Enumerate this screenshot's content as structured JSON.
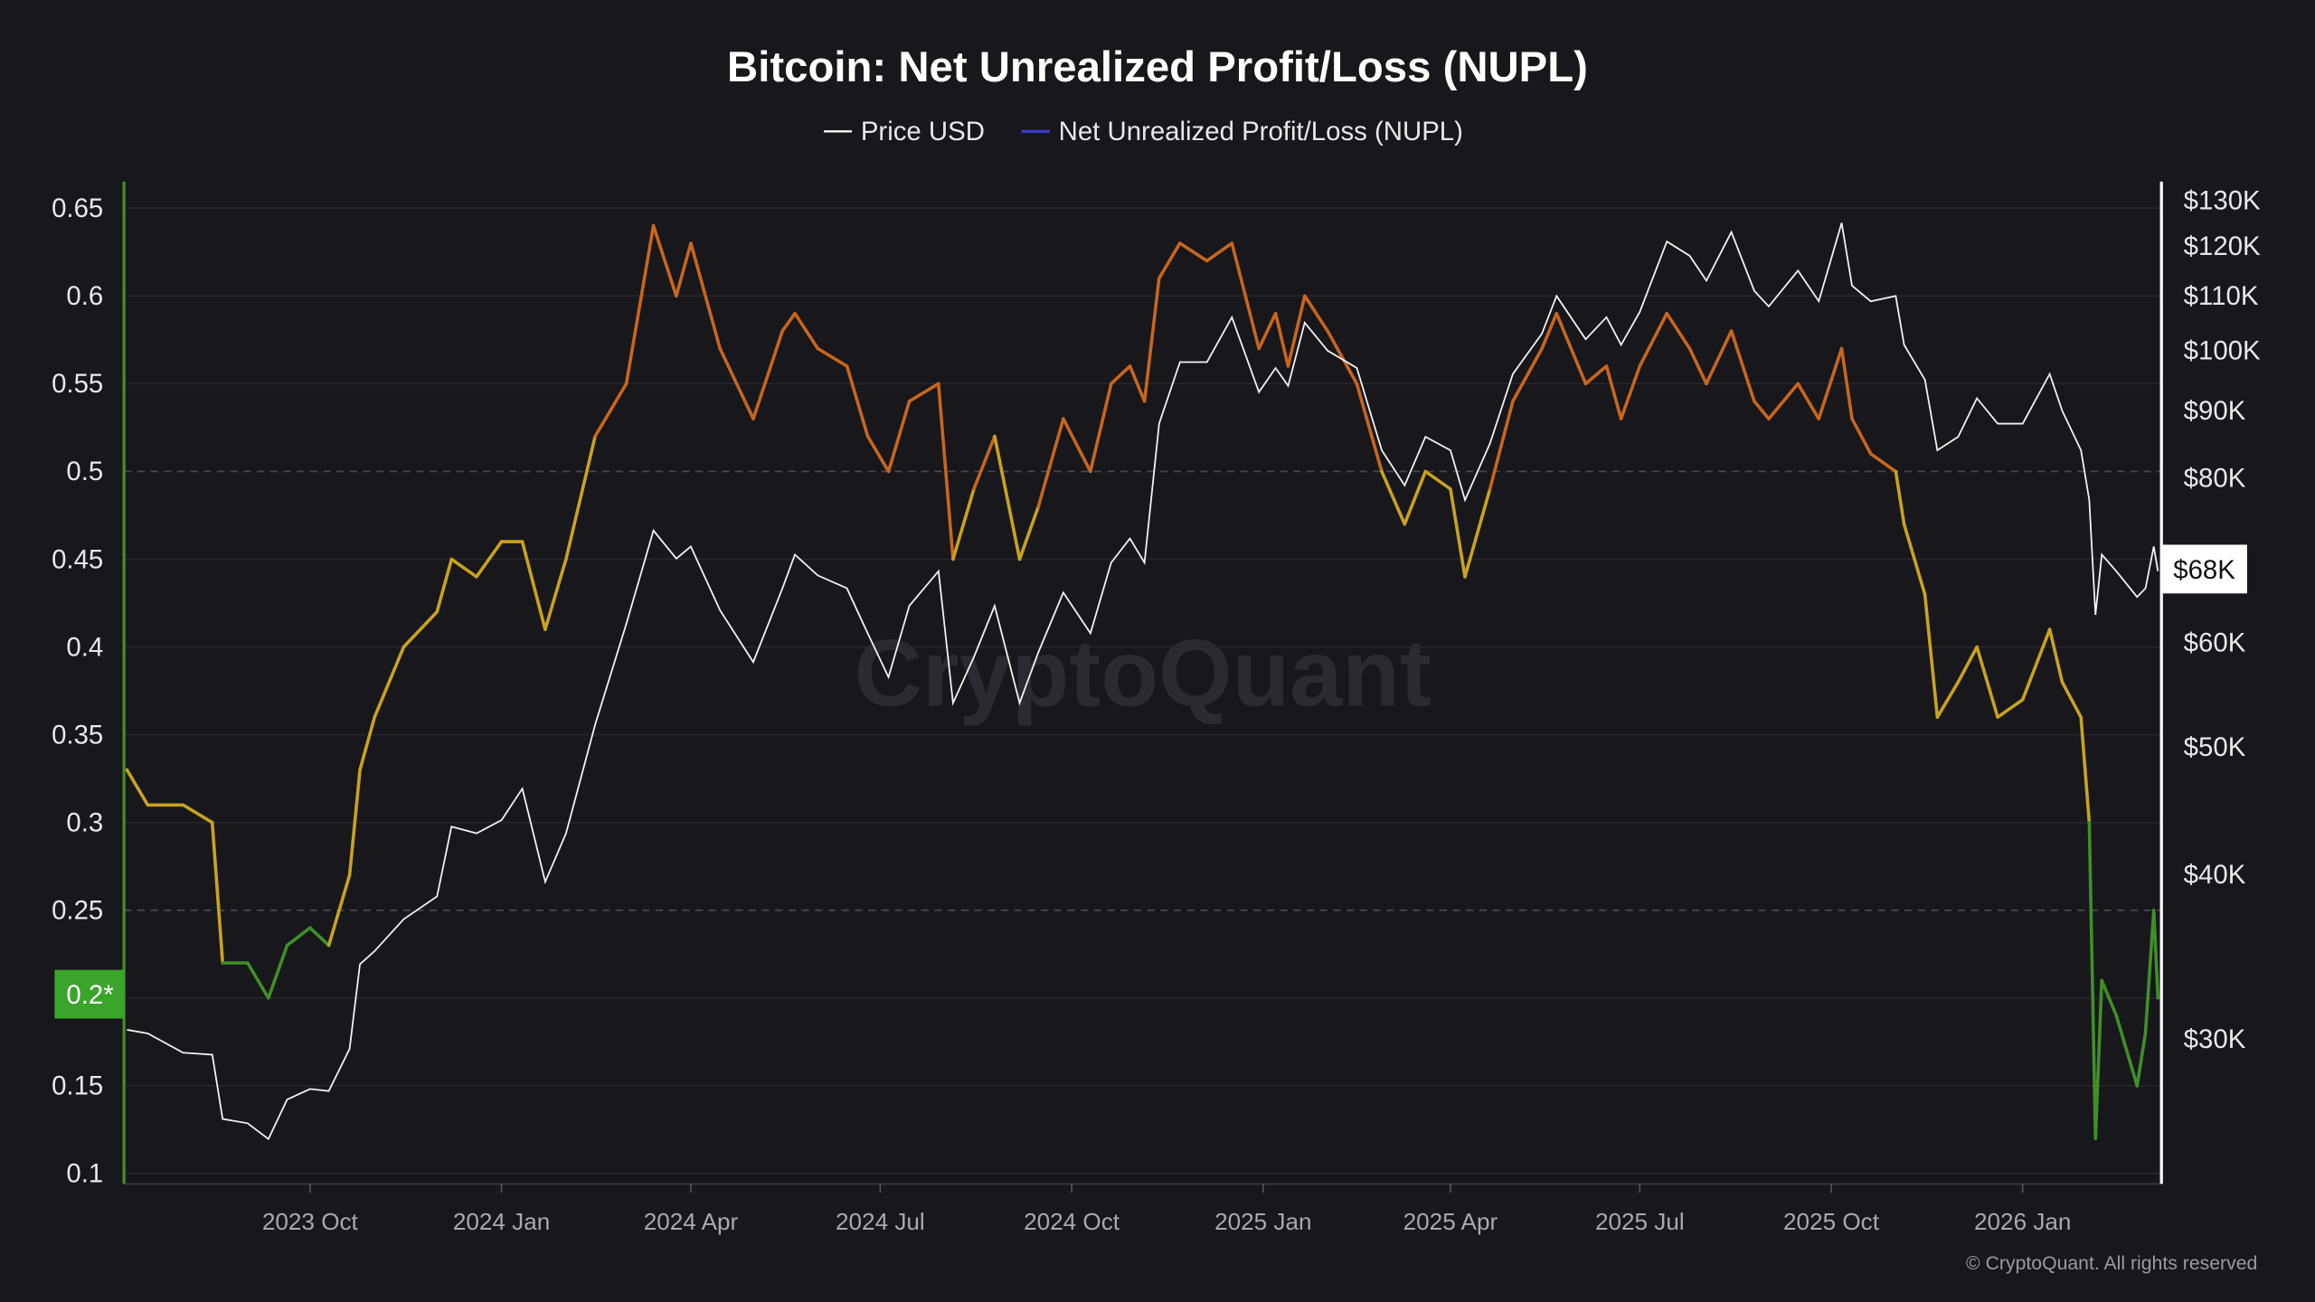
{
  "chart_data": {
    "type": "line",
    "title": "Bitcoin: Net Unrealized Profit/Loss (NUPL)",
    "legend": [
      {
        "name": "Price USD",
        "color": "#ffffff"
      },
      {
        "name": "Net Unrealized Profit/Loss (NUPL)",
        "color": "#3b3bd0"
      }
    ],
    "legend_placement": "top-center",
    "grid": true,
    "left_axis": {
      "scale": "linear",
      "range": [
        0.1,
        0.65
      ],
      "ticks": [
        "0.65",
        "0.6",
        "0.55",
        "0.5",
        "0.45",
        "0.4",
        "0.35",
        "0.3",
        "0.25",
        "0.2*",
        "0.15",
        "0.1"
      ],
      "dashed_levels": [
        0.5,
        0.25
      ]
    },
    "right_axis": {
      "scale": "log",
      "ticks": [
        "$130K",
        "$120K",
        "$110K",
        "$100K",
        "$90K",
        "$80K",
        "$60K",
        "$50K",
        "$40K",
        "$30K"
      ]
    },
    "x_ticks": [
      "2023 Oct",
      "2024 Jan",
      "2024 Apr",
      "2024 Jul",
      "2024 Oct",
      "2025 Jan",
      "2025 Apr",
      "2025 Jul",
      "2025 Oct",
      "2026 Jan"
    ],
    "current_nupl_label": "0.2*",
    "current_price_label": "$68K",
    "nupl_color_bands": [
      {
        "below": 0.25,
        "color": "#3f8f26"
      },
      {
        "below": 0.5,
        "color": "#c9a21f"
      },
      {
        "below": 0.75,
        "color": "#c8661c"
      }
    ],
    "dates": [
      "2023-07-05",
      "2023-07-15",
      "2023-08-01",
      "2023-08-15",
      "2023-08-20",
      "2023-09-01",
      "2023-09-11",
      "2023-09-20",
      "2023-10-01",
      "2023-10-10",
      "2023-10-20",
      "2023-10-25",
      "2023-11-01",
      "2023-11-15",
      "2023-12-01",
      "2023-12-08",
      "2023-12-20",
      "2024-01-01",
      "2024-01-11",
      "2024-01-22",
      "2024-02-01",
      "2024-02-15",
      "2024-03-01",
      "2024-03-14",
      "2024-03-25",
      "2024-04-01",
      "2024-04-15",
      "2024-05-01",
      "2024-05-15",
      "2024-05-21",
      "2024-06-01",
      "2024-06-15",
      "2024-06-25",
      "2024-07-05",
      "2024-07-15",
      "2024-07-29",
      "2024-08-05",
      "2024-08-15",
      "2024-08-25",
      "2024-09-06",
      "2024-09-15",
      "2024-09-27",
      "2024-10-10",
      "2024-10-20",
      "2024-10-29",
      "2024-11-05",
      "2024-11-12",
      "2024-11-22",
      "2024-12-05",
      "2024-12-17",
      "2024-12-30",
      "2025-01-07",
      "2025-01-13",
      "2025-01-21",
      "2025-02-01",
      "2025-02-15",
      "2025-02-27",
      "2025-03-10",
      "2025-03-20",
      "2025-04-01",
      "2025-04-08",
      "2025-04-20",
      "2025-05-01",
      "2025-05-15",
      "2025-05-22",
      "2025-06-05",
      "2025-06-15",
      "2025-06-22",
      "2025-07-01",
      "2025-07-14",
      "2025-07-25",
      "2025-08-02",
      "2025-08-14",
      "2025-08-25",
      "2025-09-01",
      "2025-09-15",
      "2025-09-25",
      "2025-10-06",
      "2025-10-11",
      "2025-10-20",
      "2025-11-01",
      "2025-11-05",
      "2025-11-15",
      "2025-11-21",
      "2025-12-01",
      "2025-12-10",
      "2025-12-20",
      "2026-01-01",
      "2026-01-14",
      "2026-01-20",
      "2026-01-29",
      "2026-02-02",
      "2026-02-05",
      "2026-02-08",
      "2026-02-15",
      "2026-02-25",
      "2026-03-01",
      "2026-03-05",
      "2026-03-07"
    ],
    "series": [
      {
        "name": "Price USD",
        "unit": "USD thousands",
        "values": [
          30.5,
          30.3,
          29.3,
          29.2,
          26.1,
          25.9,
          25.2,
          27.0,
          27.5,
          27.4,
          29.5,
          34.2,
          35.0,
          37.0,
          38.5,
          43.5,
          43.0,
          44.0,
          46.5,
          39.5,
          43.0,
          52.0,
          62.0,
          73.0,
          69.5,
          71.0,
          63.5,
          58.0,
          66.0,
          70.0,
          67.5,
          66.0,
          61.0,
          56.5,
          64.0,
          68.0,
          54.0,
          58.5,
          64.0,
          54.0,
          59.0,
          65.5,
          61.0,
          69.0,
          72.0,
          69.0,
          88.0,
          98.0,
          98.0,
          106.0,
          93.0,
          97.0,
          94.0,
          105.0,
          100.0,
          97.0,
          84.0,
          79.0,
          86.0,
          84.0,
          77.0,
          85.0,
          96.0,
          103.0,
          110.0,
          102.0,
          106.0,
          101.0,
          107.0,
          121.0,
          118.0,
          113.0,
          123.0,
          111.0,
          108.0,
          115.0,
          109.0,
          125.0,
          112.0,
          109.0,
          110.0,
          101.0,
          95.0,
          84.0,
          86.0,
          92.0,
          88.0,
          88.0,
          96.0,
          90.0,
          84.0,
          77.0,
          63.0,
          70.0,
          68.0,
          65.0,
          66.0,
          71.0,
          68.0
        ]
      },
      {
        "name": "Net Unrealized Profit/Loss (NUPL)",
        "values": [
          0.33,
          0.31,
          0.31,
          0.3,
          0.22,
          0.22,
          0.2,
          0.23,
          0.24,
          0.23,
          0.27,
          0.33,
          0.36,
          0.4,
          0.42,
          0.45,
          0.44,
          0.46,
          0.46,
          0.41,
          0.45,
          0.52,
          0.55,
          0.64,
          0.6,
          0.63,
          0.57,
          0.53,
          0.58,
          0.59,
          0.57,
          0.56,
          0.52,
          0.5,
          0.54,
          0.55,
          0.45,
          0.49,
          0.52,
          0.45,
          0.48,
          0.53,
          0.5,
          0.55,
          0.56,
          0.54,
          0.61,
          0.63,
          0.62,
          0.63,
          0.57,
          0.59,
          0.56,
          0.6,
          0.58,
          0.55,
          0.5,
          0.47,
          0.5,
          0.49,
          0.44,
          0.49,
          0.54,
          0.57,
          0.59,
          0.55,
          0.56,
          0.53,
          0.56,
          0.59,
          0.57,
          0.55,
          0.58,
          0.54,
          0.53,
          0.55,
          0.53,
          0.57,
          0.53,
          0.51,
          0.5,
          0.47,
          0.43,
          0.36,
          0.38,
          0.4,
          0.36,
          0.37,
          0.41,
          0.38,
          0.36,
          0.3,
          0.12,
          0.21,
          0.19,
          0.15,
          0.18,
          0.25,
          0.2
        ]
      }
    ]
  },
  "watermark": "CryptoQuant",
  "copyright": "© CryptoQuant. All rights reserved"
}
